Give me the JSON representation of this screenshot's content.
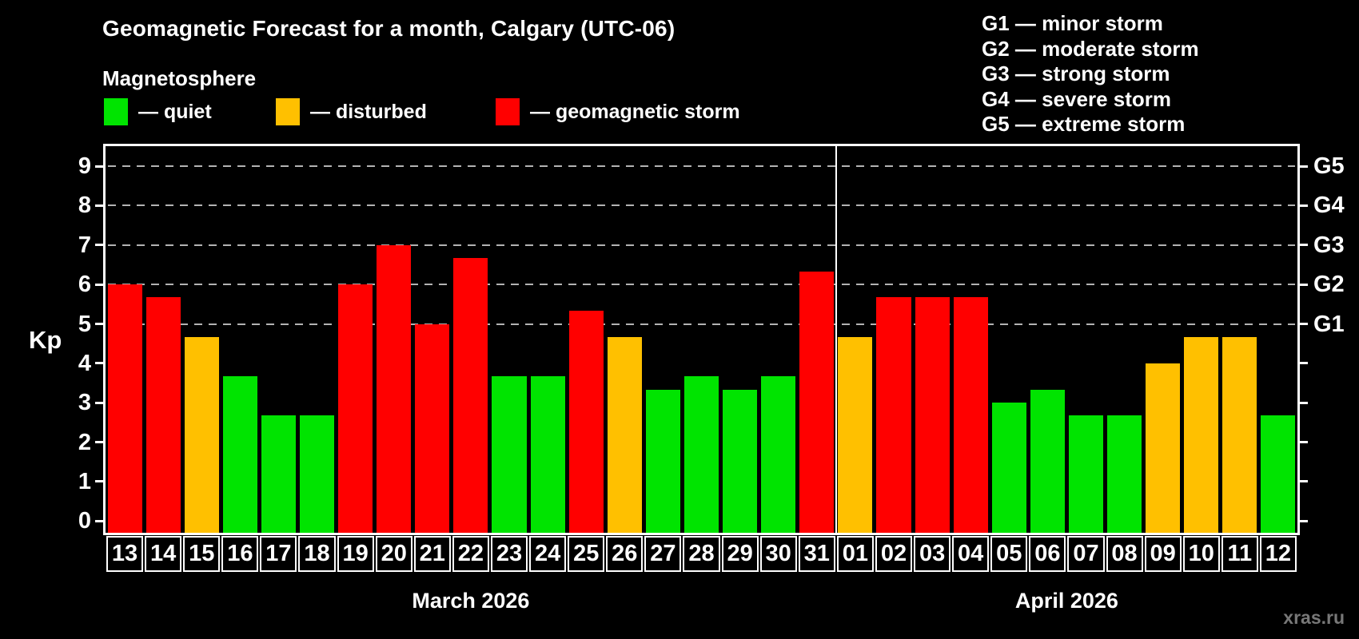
{
  "title": "Geomagnetic Forecast for a month, Calgary (UTC-06)",
  "subtitle": "Magnetosphere",
  "kp_axis_label": "Kp",
  "watermark": "xras.ru",
  "colors": {
    "quiet": "#00E400",
    "disturbed": "#FFC000",
    "storm": "#FF0000",
    "background": "#000000",
    "text": "#FFFFFF",
    "grid": "#B3B3B3",
    "frame": "#FFFFFF",
    "watermark": "#787878"
  },
  "legend": [
    {
      "key": "quiet",
      "label": "— quiet"
    },
    {
      "key": "disturbed",
      "label": "— disturbed"
    },
    {
      "key": "storm",
      "label": "— geomagnetic storm"
    }
  ],
  "g_scale_legend": [
    "G1 — minor storm",
    "G2 — moderate storm",
    "G3 — strong storm",
    "G4 — severe storm",
    "G5 — extreme storm"
  ],
  "chart_data": {
    "type": "bar",
    "title": "Geomagnetic Forecast for a month, Calgary (UTC-06)",
    "ylabel": "Kp",
    "ylim": [
      0,
      9
    ],
    "yticks": [
      0,
      1,
      2,
      3,
      4,
      5,
      6,
      7,
      8,
      9
    ],
    "gridlines_kp": [
      5,
      6,
      7,
      8,
      9
    ],
    "grid": "dashed horizontal at Kp 5-9",
    "legend_position": "top",
    "right_axis": [
      {
        "kp": 5,
        "label": "G1"
      },
      {
        "kp": 6,
        "label": "G2"
      },
      {
        "kp": 7,
        "label": "G3"
      },
      {
        "kp": 8,
        "label": "G4"
      },
      {
        "kp": 9,
        "label": "G5"
      }
    ],
    "months": [
      {
        "label": "March 2026",
        "start_index": 0,
        "days": 19
      },
      {
        "label": "April 2026",
        "start_index": 19,
        "days": 12
      }
    ],
    "days": [
      {
        "date": "13",
        "kp": 6.0,
        "status": "storm"
      },
      {
        "date": "14",
        "kp": 5.67,
        "status": "storm"
      },
      {
        "date": "15",
        "kp": 4.67,
        "status": "disturbed"
      },
      {
        "date": "16",
        "kp": 3.67,
        "status": "quiet"
      },
      {
        "date": "17",
        "kp": 2.67,
        "status": "quiet"
      },
      {
        "date": "18",
        "kp": 2.67,
        "status": "quiet"
      },
      {
        "date": "19",
        "kp": 6.0,
        "status": "storm"
      },
      {
        "date": "20",
        "kp": 7.0,
        "status": "storm"
      },
      {
        "date": "21",
        "kp": 5.0,
        "status": "storm"
      },
      {
        "date": "22",
        "kp": 6.67,
        "status": "storm"
      },
      {
        "date": "23",
        "kp": 3.67,
        "status": "quiet"
      },
      {
        "date": "24",
        "kp": 3.67,
        "status": "quiet"
      },
      {
        "date": "25",
        "kp": 5.33,
        "status": "storm"
      },
      {
        "date": "26",
        "kp": 4.67,
        "status": "disturbed"
      },
      {
        "date": "27",
        "kp": 3.33,
        "status": "quiet"
      },
      {
        "date": "28",
        "kp": 3.67,
        "status": "quiet"
      },
      {
        "date": "29",
        "kp": 3.33,
        "status": "quiet"
      },
      {
        "date": "30",
        "kp": 3.67,
        "status": "quiet"
      },
      {
        "date": "31",
        "kp": 6.33,
        "status": "storm"
      },
      {
        "date": "01",
        "kp": 4.67,
        "status": "disturbed"
      },
      {
        "date": "02",
        "kp": 5.67,
        "status": "storm"
      },
      {
        "date": "03",
        "kp": 5.67,
        "status": "storm"
      },
      {
        "date": "04",
        "kp": 5.67,
        "status": "storm"
      },
      {
        "date": "05",
        "kp": 3.0,
        "status": "quiet"
      },
      {
        "date": "06",
        "kp": 3.33,
        "status": "quiet"
      },
      {
        "date": "07",
        "kp": 2.67,
        "status": "quiet"
      },
      {
        "date": "08",
        "kp": 2.67,
        "status": "quiet"
      },
      {
        "date": "09",
        "kp": 4.0,
        "status": "disturbed"
      },
      {
        "date": "10",
        "kp": 4.67,
        "status": "disturbed"
      },
      {
        "date": "11",
        "kp": 4.67,
        "status": "disturbed"
      },
      {
        "date": "12",
        "kp": 2.67,
        "status": "quiet"
      }
    ]
  }
}
